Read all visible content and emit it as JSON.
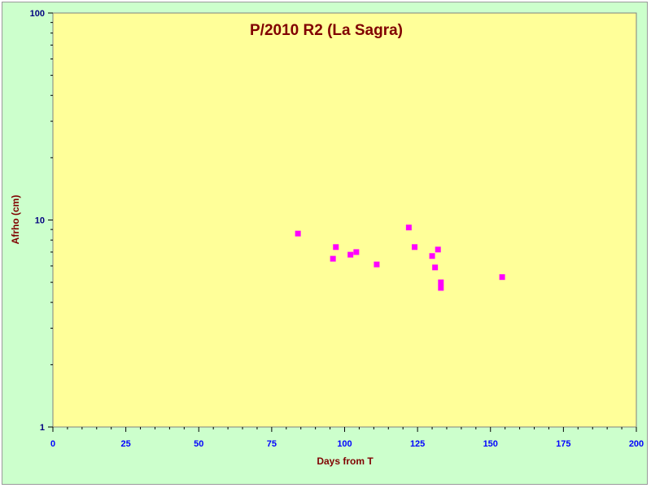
{
  "chart_data": {
    "type": "scatter",
    "title": "P/2010 R2 (La Sagra)",
    "xlabel": "Days from T",
    "ylabel": "Afrho (cm)",
    "xlim": [
      0,
      200
    ],
    "ylim": [
      1,
      100
    ],
    "y_scale": "log",
    "x_ticks": [
      "0",
      "25",
      "50",
      "75",
      "100",
      "125",
      "150",
      "175",
      "200"
    ],
    "y_ticks": [
      "1",
      "10",
      "100"
    ],
    "grid": false,
    "legend": "none",
    "series": [
      {
        "color": "#ff00ff",
        "marker": "square",
        "points": [
          {
            "x": 84,
            "y": 8.6
          },
          {
            "x": 96,
            "y": 6.5
          },
          {
            "x": 97,
            "y": 7.4
          },
          {
            "x": 102,
            "y": 6.8
          },
          {
            "x": 104,
            "y": 7.0
          },
          {
            "x": 111,
            "y": 6.1
          },
          {
            "x": 122,
            "y": 9.2
          },
          {
            "x": 124,
            "y": 7.4
          },
          {
            "x": 130,
            "y": 6.7
          },
          {
            "x": 131,
            "y": 5.9
          },
          {
            "x": 132,
            "y": 7.2
          },
          {
            "x": 133,
            "y": 5.0
          },
          {
            "x": 133,
            "y": 4.7
          },
          {
            "x": 154,
            "y": 5.3
          }
        ]
      }
    ],
    "colors": {
      "background": "#ccffcc",
      "plot_area": "#ffff99",
      "title": "#800000",
      "x_tick_labels": "#0000ff",
      "y_tick_labels": "#000080"
    }
  }
}
